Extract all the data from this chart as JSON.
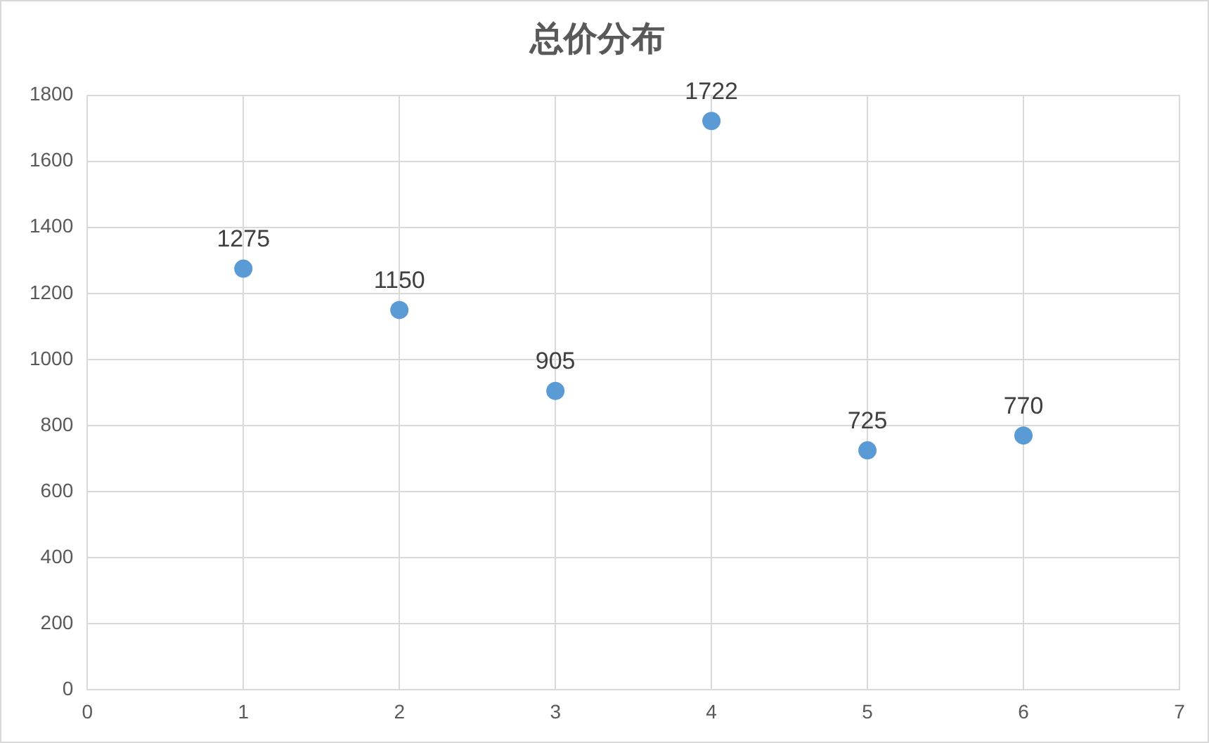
{
  "chart_data": {
    "type": "scatter",
    "title": "总价分布",
    "x": [
      1,
      2,
      3,
      4,
      5,
      6
    ],
    "series": [
      {
        "color": "#5b9bd5",
        "values": [
          1275,
          1150,
          905,
          1722,
          725,
          770
        ]
      }
    ],
    "xlim": [
      0,
      7
    ],
    "xticks": [
      0,
      1,
      2,
      3,
      4,
      5,
      6,
      7
    ],
    "ylim": [
      0,
      1800
    ],
    "yticks": [
      0,
      200,
      400,
      600,
      800,
      1000,
      1200,
      1400,
      1600,
      1800
    ],
    "grid": true,
    "marker": "circle",
    "data_labels": true,
    "legend": false
  }
}
